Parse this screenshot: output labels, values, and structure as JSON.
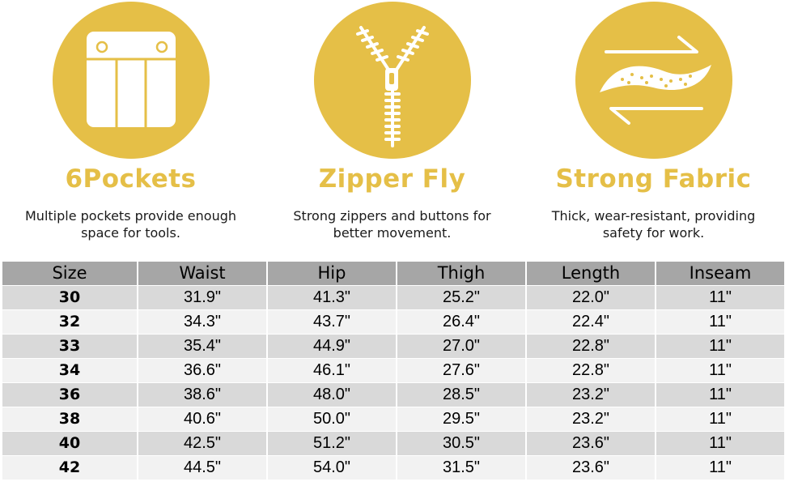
{
  "features": [
    {
      "title": "6Pockets",
      "icon": "pocket-icon",
      "desc_line1": "Multiple pockets provide enough",
      "desc_line2": "space for tools."
    },
    {
      "title": "Zipper Fly",
      "icon": "zipper-icon",
      "desc_line1": "Strong zippers and buttons for",
      "desc_line2": "better movement."
    },
    {
      "title": "Strong Fabric",
      "icon": "fabric-icon",
      "desc_line1": "Thick, wear-resistant, providing",
      "desc_line2": "safety for work."
    }
  ],
  "colors": {
    "accent": "#e5bf47",
    "header": "#a6a6a6",
    "row_dark": "#d9d9d9",
    "row_light": "#f2f2f2"
  },
  "table": {
    "headers": [
      "Size",
      "Waist",
      "Hip",
      "Thigh",
      "Length",
      "Inseam"
    ],
    "rows": [
      [
        "30",
        "31.9\"",
        "41.3\"",
        "25.2\"",
        "22.0\"",
        "11\""
      ],
      [
        "32",
        "34.3\"",
        "43.7\"",
        "26.4\"",
        "22.4\"",
        "11\""
      ],
      [
        "33",
        "35.4\"",
        "44.9\"",
        "27.0\"",
        "22.8\"",
        "11\""
      ],
      [
        "34",
        "36.6\"",
        "46.1\"",
        "27.6\"",
        "22.8\"",
        "11\""
      ],
      [
        "36",
        "38.6\"",
        "48.0\"",
        "28.5\"",
        "23.2\"",
        "11\""
      ],
      [
        "38",
        "40.6\"",
        "50.0\"",
        "29.5\"",
        "23.2\"",
        "11\""
      ],
      [
        "40",
        "42.5\"",
        "51.2\"",
        "30.5\"",
        "23.6\"",
        "11\""
      ],
      [
        "42",
        "44.5\"",
        "54.0\"",
        "31.5\"",
        "23.6\"",
        "11\""
      ]
    ]
  }
}
